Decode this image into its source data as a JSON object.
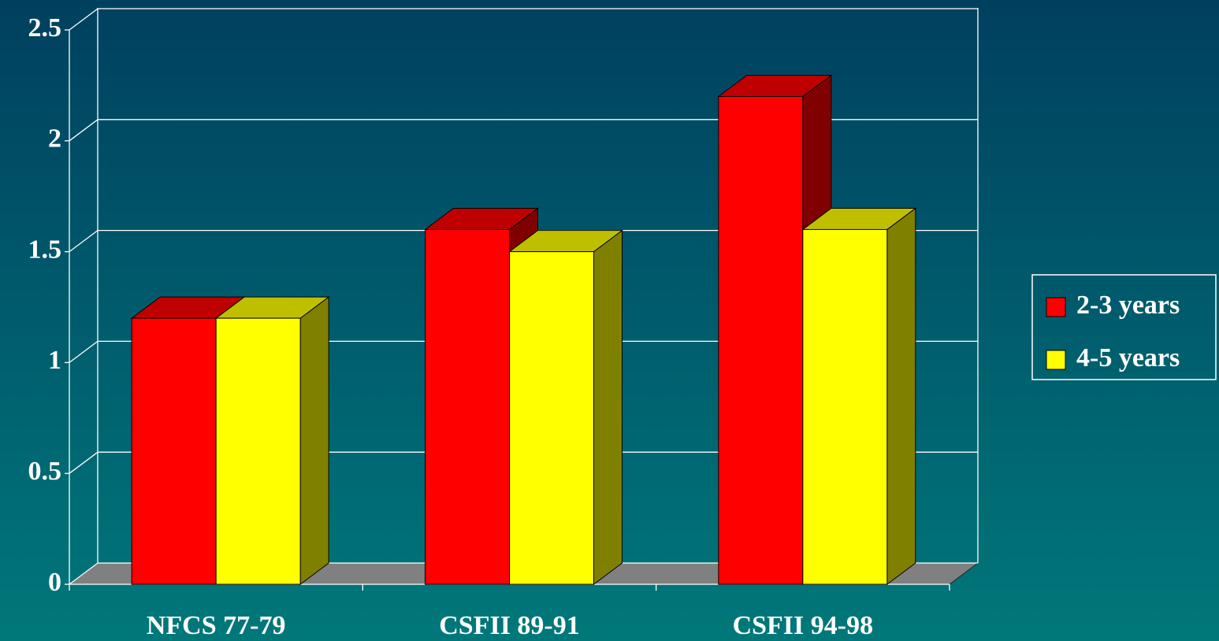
{
  "chart_data": {
    "type": "bar3d",
    "categories": [
      "NFCS 77-79",
      "CSFII 89-91",
      "CSFII 94-98"
    ],
    "series": [
      {
        "name": "2-3 years",
        "color": "#ff0000",
        "values": [
          1.2,
          1.6,
          2.2
        ]
      },
      {
        "name": "4-5 years",
        "color": "#ffff00",
        "values": [
          1.2,
          1.5,
          1.6
        ]
      }
    ],
    "ylim": [
      0,
      2.5
    ],
    "yticks": [
      0,
      0.5,
      1,
      1.5,
      2,
      2.5
    ],
    "grid": true,
    "legend": "right"
  }
}
